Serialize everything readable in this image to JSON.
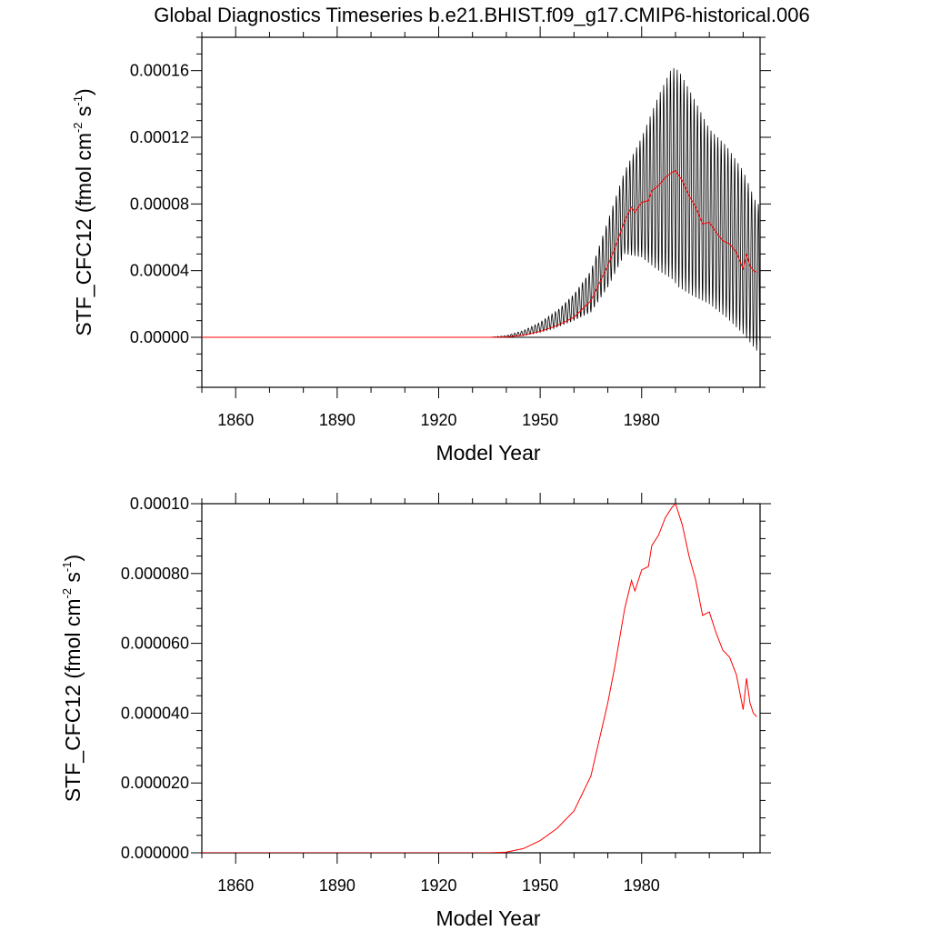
{
  "title": "Global Diagnostics Timeseries b.e21.BHIST.f09_g17.CMIP6-historical.006",
  "chart_data": [
    {
      "type": "line",
      "xlabel": "Model Year",
      "ylabel_main": "STF_CFC12 (fmol cm",
      "ylabel_sup1": "-2",
      "ylabel_mid": " s",
      "ylabel_sup2": "-1",
      "ylabel_end": ")",
      "xlim": [
        1850,
        2015
      ],
      "ylim": [
        -3e-05,
        0.00018
      ],
      "xticks": [
        1860,
        1890,
        1920,
        1950,
        1980
      ],
      "xtick_labels": [
        "1860",
        "1890",
        "1920",
        "1950",
        "1980"
      ],
      "yticks": [
        0.0,
        4e-05,
        8e-05,
        0.00012,
        0.00016
      ],
      "ytick_labels": [
        "0.00000",
        "0.00004",
        "0.00008",
        "0.00012",
        "0.00016"
      ],
      "zero_line": true,
      "series": [
        {
          "name": "monthly",
          "color": "#000000",
          "kind": "monthly",
          "envelope_years": [
            1850,
            1935,
            1940,
            1945,
            1950,
            1955,
            1960,
            1965,
            1970,
            1975,
            1980,
            1985,
            1989,
            1991,
            1995,
            2000,
            2005,
            2010,
            2014
          ],
          "envelope_max": [
            0,
            0,
            1e-06,
            4e-06,
            9e-06,
            1.6e-05,
            2.6e-05,
            4e-05,
            7e-05,
            0.0001,
            0.00012,
            0.000145,
            0.000162,
            0.00016,
            0.000145,
            0.000125,
            0.000115,
            0.0001,
            8e-05
          ],
          "envelope_min": [
            0,
            0,
            2e-07,
            1e-06,
            3e-06,
            6e-06,
            1e-05,
            1.5e-05,
            3e-05,
            5e-05,
            4.8e-05,
            4e-05,
            3.5e-05,
            3e-05,
            2.5e-05,
            2e-05,
            1.2e-05,
            2e-06,
            -8e-06
          ]
        },
        {
          "name": "annual",
          "color": "#ff0000",
          "kind": "annual",
          "years": [
            1850,
            1935,
            1940,
            1945,
            1950,
            1955,
            1960,
            1965,
            1970,
            1972,
            1975,
            1977,
            1978,
            1980,
            1982,
            1983,
            1985,
            1987,
            1989,
            1990,
            1992,
            1994,
            1996,
            1998,
            2000,
            2002,
            2004,
            2006,
            2008,
            2010,
            2011,
            2012,
            2013,
            2014
          ],
          "values": [
            0,
            0,
            2e-07,
            1.2e-06,
            3.5e-06,
            7e-06,
            1.2e-05,
            2.2e-05,
            4.3e-05,
            5.3e-05,
            7e-05,
            7.8e-05,
            7.5e-05,
            8.1e-05,
            8.2e-05,
            8.8e-05,
            9.1e-05,
            9.6e-05,
            9.9e-05,
            0.0001,
            9.4e-05,
            8.5e-05,
            7.8e-05,
            6.8e-05,
            6.9e-05,
            6.3e-05,
            5.8e-05,
            5.6e-05,
            5.1e-05,
            4.1e-05,
            5e-05,
            4.3e-05,
            4e-05,
            3.9e-05
          ]
        }
      ]
    },
    {
      "type": "line",
      "xlabel": "Model Year",
      "ylabel_main": "STF_CFC12 (fmol cm",
      "ylabel_sup1": "-2",
      "ylabel_mid": " s",
      "ylabel_sup2": "-1",
      "ylabel_end": ")",
      "xlim": [
        1850,
        2015
      ],
      "ylim": [
        0.0,
        0.0001
      ],
      "xticks": [
        1860,
        1890,
        1920,
        1950,
        1980
      ],
      "xtick_labels": [
        "1860",
        "1890",
        "1920",
        "1950",
        "1980"
      ],
      "yticks": [
        0.0,
        2e-05,
        4e-05,
        6e-05,
        8e-05,
        0.0001
      ],
      "ytick_labels": [
        "0.000000",
        "0.000020",
        "0.000040",
        "0.000060",
        "0.000080",
        "0.00010"
      ],
      "zero_line": false,
      "series": [
        {
          "name": "annual",
          "color": "#ff0000",
          "kind": "annual",
          "years": [
            1850,
            1935,
            1940,
            1945,
            1950,
            1955,
            1960,
            1965,
            1970,
            1972,
            1975,
            1977,
            1978,
            1980,
            1982,
            1983,
            1985,
            1987,
            1989,
            1990,
            1992,
            1994,
            1996,
            1998,
            2000,
            2002,
            2004,
            2006,
            2008,
            2010,
            2011,
            2012,
            2013,
            2014
          ],
          "values": [
            0,
            0,
            2e-07,
            1.2e-06,
            3.5e-06,
            7e-06,
            1.2e-05,
            2.2e-05,
            4.3e-05,
            5.3e-05,
            7e-05,
            7.8e-05,
            7.5e-05,
            8.1e-05,
            8.2e-05,
            8.8e-05,
            9.1e-05,
            9.6e-05,
            9.9e-05,
            0.0001,
            9.4e-05,
            8.5e-05,
            7.8e-05,
            6.8e-05,
            6.9e-05,
            6.3e-05,
            5.8e-05,
            5.6e-05,
            5.1e-05,
            4.1e-05,
            5e-05,
            4.3e-05,
            4e-05,
            3.9e-05
          ]
        }
      ]
    }
  ]
}
